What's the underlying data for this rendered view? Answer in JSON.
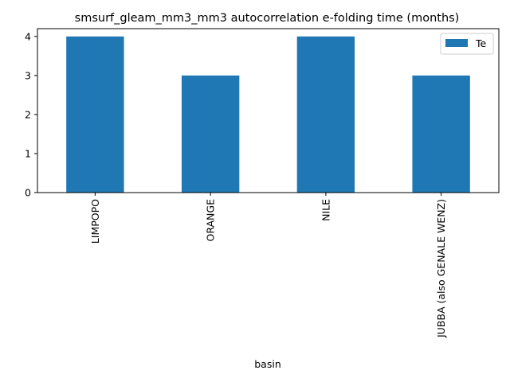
{
  "chart_data": {
    "type": "bar",
    "title": "smsurf_gleam_mm3_mm3 autocorrelation e-folding time (months)",
    "xlabel": "basin",
    "ylabel": "",
    "categories": [
      "LIMPOPO",
      "ORANGE",
      "NILE",
      "JUBBA (also GENALE WENZ)"
    ],
    "series": [
      {
        "name": "Te",
        "values": [
          4,
          3,
          4,
          3
        ],
        "color": "#1f77b4"
      }
    ],
    "ylim": [
      0,
      4.2
    ],
    "yticks": [
      0,
      1,
      2,
      3,
      4
    ],
    "grid": false,
    "legend_position": "top-right"
  }
}
